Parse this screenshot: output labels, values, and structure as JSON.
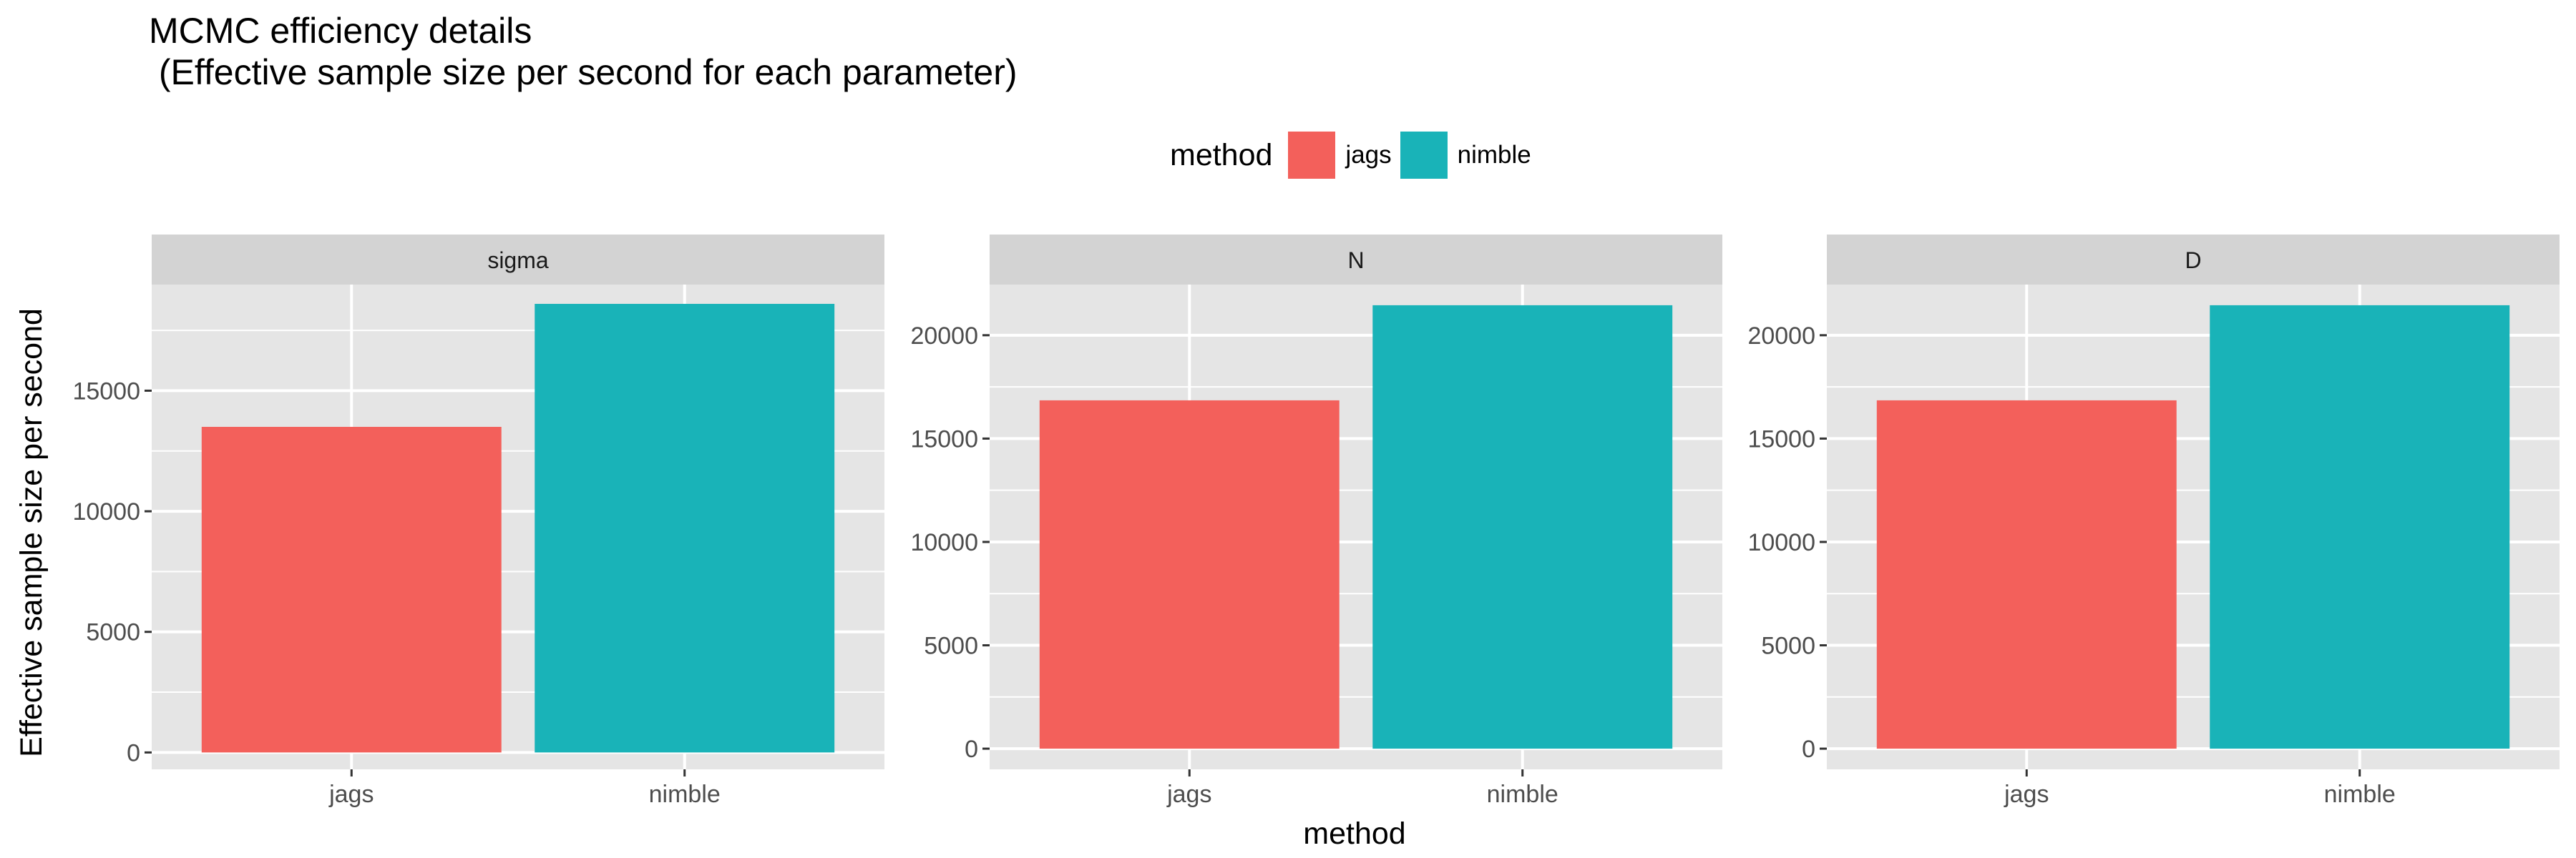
{
  "title": "MCMC efficiency details\n (Effective sample size per second for each parameter)",
  "legend": {
    "title": "method",
    "items": [
      {
        "label": "jags",
        "color": "#F3605B"
      },
      {
        "label": "nimble",
        "color": "#19B3B8"
      }
    ]
  },
  "colors": {
    "panel_bg": "#E5E5E5",
    "strip_bg": "#D3D3D3",
    "grid": "#FFFFFF"
  },
  "chart_data": {
    "type": "bar",
    "xlabel": "method",
    "ylabel": "Effective sample size per second",
    "categories": [
      "jags",
      "nimble"
    ],
    "legend_position": "top",
    "grid": true,
    "facets": [
      {
        "strip": "sigma",
        "values": [
          13500,
          18600
        ],
        "ylim": [
          -700,
          19400
        ],
        "yticks": [
          0,
          5000,
          10000,
          15000
        ]
      },
      {
        "strip": "N",
        "values": [
          16850,
          21450
        ],
        "ylim": [
          -1000,
          22450
        ],
        "yticks": [
          0,
          5000,
          10000,
          15000,
          20000
        ]
      },
      {
        "strip": "D",
        "values": [
          16850,
          21450
        ],
        "ylim": [
          -1000,
          22450
        ],
        "yticks": [
          0,
          5000,
          10000,
          15000,
          20000
        ]
      }
    ]
  }
}
